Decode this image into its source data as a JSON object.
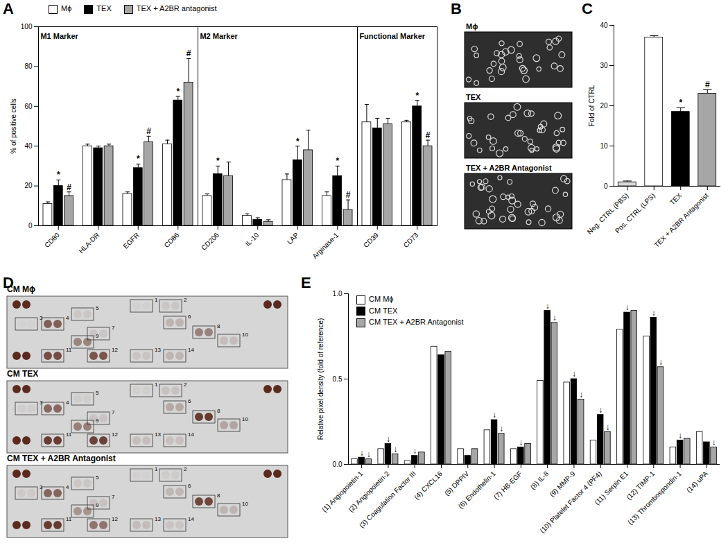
{
  "chart_data": [
    {
      "panel": "A",
      "type": "bar",
      "categories": [
        "CD80",
        "HLA-DR",
        "EGFR",
        "CD86",
        "CD206",
        "IL-10",
        "LAP",
        "Arginase-1",
        "CD39",
        "CD73"
      ],
      "y_label": "% of positive cells",
      "ylim": [
        0,
        100
      ],
      "yticks": [
        0,
        20,
        40,
        60,
        80,
        100
      ],
      "legend": "top",
      "sections": [
        {
          "label": "M1 Marker",
          "categories": [
            "CD80",
            "HLA-DR",
            "EGFR",
            "CD86"
          ]
        },
        {
          "label": "M2 Marker",
          "categories": [
            "CD206",
            "IL-10",
            "LAP",
            "Arginase-1"
          ]
        },
        {
          "label": "Functional Marker",
          "categories": [
            "CD39",
            "CD73"
          ]
        }
      ],
      "series": [
        {
          "name": "Mϕ",
          "color": "#ffffff",
          "values": [
            11,
            40,
            16,
            41,
            15,
            5,
            23,
            15,
            52,
            52
          ],
          "errors": [
            1,
            1,
            1,
            2,
            1,
            1,
            3,
            2,
            9,
            1
          ]
        },
        {
          "name": "TEX",
          "color": "#000000",
          "values": [
            20,
            39,
            29,
            63,
            26,
            3,
            33,
            25,
            49,
            60
          ],
          "errors": [
            3,
            1,
            2,
            2,
            4,
            1,
            7,
            5,
            5,
            3
          ],
          "significance": [
            "*",
            null,
            "*",
            "*",
            "*",
            null,
            "*",
            "*",
            null,
            "*"
          ]
        },
        {
          "name": "TEX + A2BR antagonist",
          "color": "#a6a6a6",
          "values": [
            15,
            40,
            42,
            72,
            25,
            2,
            38,
            8,
            51,
            40
          ],
          "errors": [
            2,
            1,
            3,
            12,
            7,
            1,
            10,
            5,
            3,
            3
          ],
          "significance": [
            "#",
            null,
            "#",
            "#",
            null,
            null,
            null,
            "#",
            null,
            "#"
          ]
        }
      ]
    },
    {
      "panel": "C",
      "type": "bar",
      "categories": [
        "Neg. CTRL (PBS)",
        "Pos. CTRL (LPS)",
        "TEX",
        "TEX + A2BR Antagonist"
      ],
      "values": [
        1,
        37,
        18.5,
        23
      ],
      "errors": [
        0.3,
        0.4,
        1,
        1
      ],
      "colors": [
        "#d9d9d9",
        "#ffffff",
        "#000000",
        "#a6a6a6"
      ],
      "significance": [
        null,
        null,
        "*",
        "#"
      ],
      "y_label": "Fold of CTRL",
      "ylim": [
        0,
        40
      ],
      "yticks": [
        0,
        10,
        20,
        30,
        40
      ]
    },
    {
      "panel": "E",
      "type": "bar",
      "categories": [
        "(1) Angiopoietin-1",
        "(2) Angiopoietin-2",
        "(3) Coagulation Factor III",
        "(4) CXCL16",
        "(5) DPPIV",
        "(6) Endothelin-1",
        "(7) HB-EGF",
        "(8) IL-8",
        "(9) MMP-9",
        "(10) Platelet Factor 4 (PF4)",
        "(11) Serpin E1",
        "(12) TIMP-1",
        "(13) Thrombospondin-1",
        "(14) uPA"
      ],
      "y_label": "Relative pixel density (fold of reference)",
      "ylim": [
        0,
        1
      ],
      "yticks": [
        {
          "value": 0,
          "label": "0.0"
        },
        {
          "value": 0.5,
          "label": "0.5"
        },
        {
          "value": 1,
          "label": "1.0"
        }
      ],
      "legend": "top-left",
      "series": [
        {
          "name": "CM Mϕ",
          "color": "#ffffff",
          "values": [
            0.03,
            0.09,
            0.02,
            0.69,
            0.09,
            0.2,
            0.09,
            0.49,
            0.48,
            0.14,
            0.79,
            0.75,
            0.1,
            0.19
          ]
        },
        {
          "name": "CM TEX",
          "color": "#000000",
          "values": [
            0.04,
            0.12,
            0.05,
            0.64,
            0.05,
            0.26,
            0.1,
            0.9,
            0.5,
            0.29,
            0.89,
            0.86,
            0.14,
            0.13
          ],
          "significance": [
            "↓",
            "↓",
            "↓",
            null,
            null,
            "↓",
            "↓",
            "↓",
            "↓",
            "↓",
            "↓",
            "↓",
            "↓",
            null
          ]
        },
        {
          "name": "CM TEX + A2BR Antagonist",
          "color": "#a6a6a6",
          "values": [
            0.03,
            0.06,
            0.07,
            0.66,
            0.09,
            0.18,
            0.12,
            0.83,
            0.38,
            0.19,
            0.9,
            0.57,
            0.15,
            0.1
          ],
          "significance": [
            "↓",
            "↓",
            null,
            null,
            null,
            "↓",
            null,
            "↓",
            "↓",
            "↓",
            null,
            "↓",
            null,
            "↓"
          ]
        }
      ]
    }
  ],
  "image_panel": {
    "panel": "B",
    "type": "image",
    "labels": [
      "Mϕ",
      "TEX",
      "TEX + A2BR Antagonist"
    ]
  },
  "blot_panel": {
    "panel": "D",
    "type": "blot",
    "titles": [
      "CM Mϕ",
      "CM TEX",
      "CM TEX + A2BR Antagonist"
    ],
    "spot_labels": [
      1,
      2,
      3,
      4,
      5,
      6,
      7,
      8,
      9,
      10,
      11,
      12,
      13,
      14
    ]
  }
}
